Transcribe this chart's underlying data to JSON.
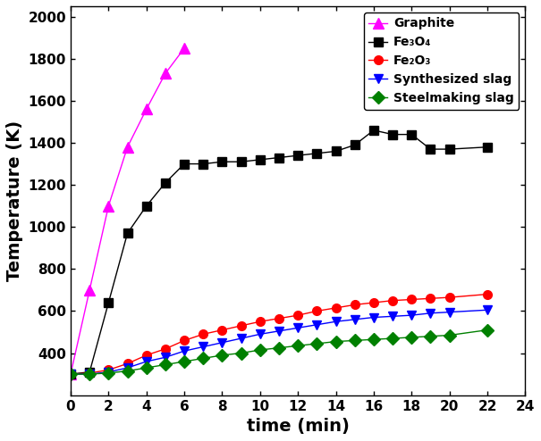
{
  "graphite_x": [
    0,
    1,
    2,
    3,
    4,
    5,
    6
  ],
  "graphite_y": [
    300,
    700,
    1100,
    1380,
    1560,
    1730,
    1850
  ],
  "fe3o4_x": [
    0,
    1,
    2,
    3,
    4,
    5,
    6,
    7,
    8,
    9,
    10,
    11,
    12,
    13,
    14,
    15,
    16,
    17,
    18,
    19,
    20,
    22
  ],
  "fe3o4_y": [
    300,
    310,
    640,
    970,
    1100,
    1210,
    1300,
    1300,
    1310,
    1310,
    1320,
    1330,
    1340,
    1350,
    1360,
    1390,
    1460,
    1440,
    1440,
    1370,
    1370,
    1380
  ],
  "fe2o3_x": [
    0,
    1,
    2,
    3,
    4,
    5,
    6,
    7,
    8,
    9,
    10,
    11,
    12,
    13,
    14,
    15,
    16,
    17,
    18,
    19,
    20,
    22
  ],
  "fe2o3_y": [
    300,
    305,
    320,
    350,
    390,
    420,
    460,
    490,
    510,
    530,
    550,
    565,
    580,
    600,
    615,
    630,
    640,
    650,
    655,
    660,
    665,
    680
  ],
  "synth_x": [
    0,
    1,
    2,
    3,
    4,
    5,
    6,
    7,
    8,
    9,
    10,
    11,
    12,
    13,
    14,
    15,
    16,
    17,
    18,
    19,
    20,
    22
  ],
  "synth_y": [
    300,
    300,
    310,
    330,
    360,
    380,
    410,
    430,
    450,
    470,
    490,
    505,
    520,
    535,
    550,
    560,
    570,
    575,
    580,
    590,
    595,
    605
  ],
  "steel_x": [
    0,
    1,
    2,
    3,
    4,
    5,
    6,
    7,
    8,
    9,
    10,
    11,
    12,
    13,
    14,
    15,
    16,
    17,
    18,
    19,
    20,
    22
  ],
  "steel_y": [
    300,
    300,
    305,
    315,
    330,
    345,
    360,
    375,
    390,
    400,
    415,
    425,
    435,
    445,
    455,
    460,
    465,
    470,
    475,
    480,
    485,
    510
  ],
  "graphite_color": "#FF00FF",
  "fe3o4_color": "#000000",
  "fe2o3_color": "#FF0000",
  "synth_color": "#0000FF",
  "steel_color": "#008000",
  "xlabel": "time (min)",
  "ylabel": "Temperature (K)",
  "xlim": [
    0,
    24
  ],
  "ylim": [
    200,
    2050
  ],
  "xticks": [
    0,
    2,
    4,
    6,
    8,
    10,
    12,
    14,
    16,
    18,
    20,
    22,
    24
  ],
  "yticks": [
    400,
    600,
    800,
    1000,
    1200,
    1400,
    1600,
    1800,
    2000
  ],
  "legend_labels": [
    "Graphite",
    "Fe₃O₄",
    "Fe₂O₃",
    "Synthesized slag",
    "Steelmaking slag"
  ],
  "marker_sizes": [
    8,
    7,
    7,
    7,
    7
  ],
  "linewidth": 1.0
}
